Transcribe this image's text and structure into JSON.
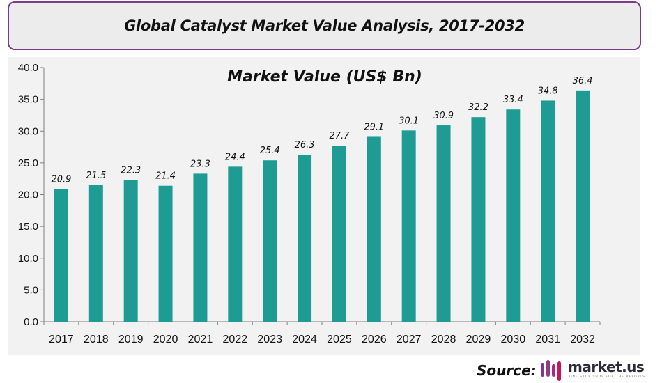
{
  "header": {
    "title": "Global Catalyst Market Value Analysis, 2017-2032"
  },
  "footer": {
    "source_label": "Source:",
    "brand": "market.us",
    "tagline": "ONE STOP SHOP FOR THE REPORTS",
    "brand_colors": [
      "#7b3a8c",
      "#c2185b"
    ]
  },
  "chart_data": {
    "type": "bar",
    "title": "Market Value (US$ Bn)",
    "categories": [
      "2017",
      "2018",
      "2019",
      "2020",
      "2021",
      "2022",
      "2023",
      "2024",
      "2025",
      "2026",
      "2027",
      "2028",
      "2029",
      "2030",
      "2031",
      "2032"
    ],
    "values": [
      20.9,
      21.5,
      22.3,
      21.4,
      23.3,
      24.4,
      25.4,
      26.3,
      27.7,
      29.1,
      30.1,
      30.9,
      32.2,
      33.4,
      34.8,
      36.4
    ],
    "ylim": [
      0,
      40
    ],
    "yticks": [
      "0.0",
      "5.0",
      "10.0",
      "15.0",
      "20.0",
      "25.0",
      "30.0",
      "35.0",
      "40.0"
    ],
    "grid": false,
    "bar_color": "#1e9c94",
    "data_labels": true
  }
}
